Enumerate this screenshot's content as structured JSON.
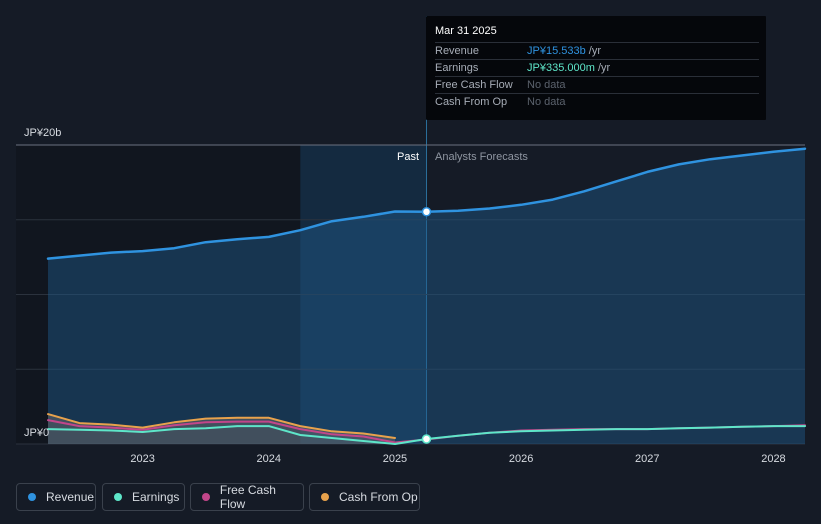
{
  "tooltip": {
    "date": "Mar 31 2025",
    "rows": [
      {
        "label": "Revenue",
        "value": "JP¥15.533b",
        "unit": " /yr"
      },
      {
        "label": "Earnings",
        "value": "JP¥335.000m",
        "unit": " /yr"
      },
      {
        "label": "Free Cash Flow",
        "value": "No data",
        "unit": ""
      },
      {
        "label": "Cash From Op",
        "value": "No data",
        "unit": ""
      }
    ]
  },
  "period_labels": {
    "past": "Past",
    "forecast": "Analysts Forecasts"
  },
  "legend": [
    {
      "label": "Revenue",
      "color": "#2f93e0"
    },
    {
      "label": "Earnings",
      "color": "#5ee6c9"
    },
    {
      "label": "Free Cash Flow",
      "color": "#c2468a"
    },
    {
      "label": "Cash From Op",
      "color": "#e8a24c"
    }
  ],
  "chart_data": {
    "type": "line",
    "y_tick_labels": [
      "JP¥0",
      "JP¥20b"
    ],
    "ylim": [
      0,
      20
    ],
    "y_unit": "JP¥ billions",
    "x_tick_labels": [
      "2023",
      "2024",
      "2025",
      "2026",
      "2027",
      "2028"
    ],
    "xlim": [
      2022.25,
      2028.25
    ],
    "past_until": 2025.25,
    "highlight_range": [
      2024.25,
      2025.25
    ],
    "grid": true,
    "legend_position": "bottom-left",
    "series": [
      {
        "name": "Revenue",
        "color": "#2f93e0",
        "points": [
          [
            2022.25,
            12.4
          ],
          [
            2022.5,
            12.6
          ],
          [
            2022.75,
            12.8
          ],
          [
            2023.0,
            12.9
          ],
          [
            2023.25,
            13.1
          ],
          [
            2023.5,
            13.5
          ],
          [
            2023.75,
            13.7
          ],
          [
            2024.0,
            13.85
          ],
          [
            2024.25,
            14.3
          ],
          [
            2024.5,
            14.9
          ],
          [
            2024.75,
            15.2
          ],
          [
            2025.0,
            15.55
          ],
          [
            2025.25,
            15.533
          ],
          [
            2025.5,
            15.6
          ],
          [
            2025.75,
            15.75
          ],
          [
            2026.0,
            16.0
          ],
          [
            2026.25,
            16.35
          ],
          [
            2026.5,
            16.9
          ],
          [
            2026.75,
            17.55
          ],
          [
            2027.0,
            18.2
          ],
          [
            2027.25,
            18.7
          ],
          [
            2027.5,
            19.05
          ],
          [
            2027.75,
            19.3
          ],
          [
            2028.0,
            19.55
          ],
          [
            2028.25,
            19.75
          ]
        ]
      },
      {
        "name": "Earnings",
        "color": "#5ee6c9",
        "points": [
          [
            2022.25,
            1.0
          ],
          [
            2022.5,
            0.95
          ],
          [
            2022.75,
            0.9
          ],
          [
            2023.0,
            0.8
          ],
          [
            2023.25,
            1.0
          ],
          [
            2023.5,
            1.05
          ],
          [
            2023.75,
            1.2
          ],
          [
            2024.0,
            1.2
          ],
          [
            2024.25,
            0.6
          ],
          [
            2024.5,
            0.4
          ],
          [
            2024.75,
            0.2
          ],
          [
            2025.0,
            0.0
          ],
          [
            2025.25,
            0.335
          ],
          [
            2025.5,
            0.55
          ],
          [
            2025.75,
            0.75
          ],
          [
            2026.0,
            0.85
          ],
          [
            2026.25,
            0.9
          ],
          [
            2026.5,
            0.95
          ],
          [
            2026.75,
            1.0
          ],
          [
            2027.0,
            1.0
          ],
          [
            2027.25,
            1.05
          ],
          [
            2027.5,
            1.1
          ],
          [
            2027.75,
            1.15
          ],
          [
            2028.0,
            1.2
          ],
          [
            2028.25,
            1.2
          ]
        ]
      },
      {
        "name": "Free Cash Flow",
        "color": "#c2468a",
        "points": [
          [
            2022.25,
            1.6
          ],
          [
            2022.5,
            1.2
          ],
          [
            2022.75,
            1.1
          ],
          [
            2023.0,
            0.95
          ],
          [
            2023.25,
            1.25
          ],
          [
            2023.5,
            1.45
          ],
          [
            2023.75,
            1.5
          ],
          [
            2024.0,
            1.5
          ],
          [
            2024.25,
            1.0
          ],
          [
            2024.5,
            0.65
          ],
          [
            2024.75,
            0.5
          ],
          [
            2025.0,
            0.1
          ],
          [
            2025.25,
            0.3
          ],
          [
            2025.5,
            0.55
          ],
          [
            2025.75,
            0.75
          ],
          [
            2026.0,
            0.9
          ],
          [
            2026.25,
            0.95
          ],
          [
            2026.5,
            1.0
          ],
          [
            2026.75,
            1.0
          ],
          [
            2027.0,
            1.0
          ],
          [
            2027.25,
            1.05
          ],
          [
            2027.5,
            1.1
          ],
          [
            2027.75,
            1.15
          ],
          [
            2028.0,
            1.2
          ],
          [
            2028.25,
            1.25
          ]
        ]
      },
      {
        "name": "Cash From Op",
        "color": "#e8a24c",
        "points": [
          [
            2022.25,
            2.0
          ],
          [
            2022.5,
            1.4
          ],
          [
            2022.75,
            1.3
          ],
          [
            2023.0,
            1.1
          ],
          [
            2023.25,
            1.45
          ],
          [
            2023.5,
            1.7
          ],
          [
            2023.75,
            1.75
          ],
          [
            2024.0,
            1.75
          ],
          [
            2024.25,
            1.2
          ],
          [
            2024.5,
            0.85
          ],
          [
            2024.75,
            0.7
          ],
          [
            2025.0,
            0.4
          ]
        ]
      }
    ]
  }
}
